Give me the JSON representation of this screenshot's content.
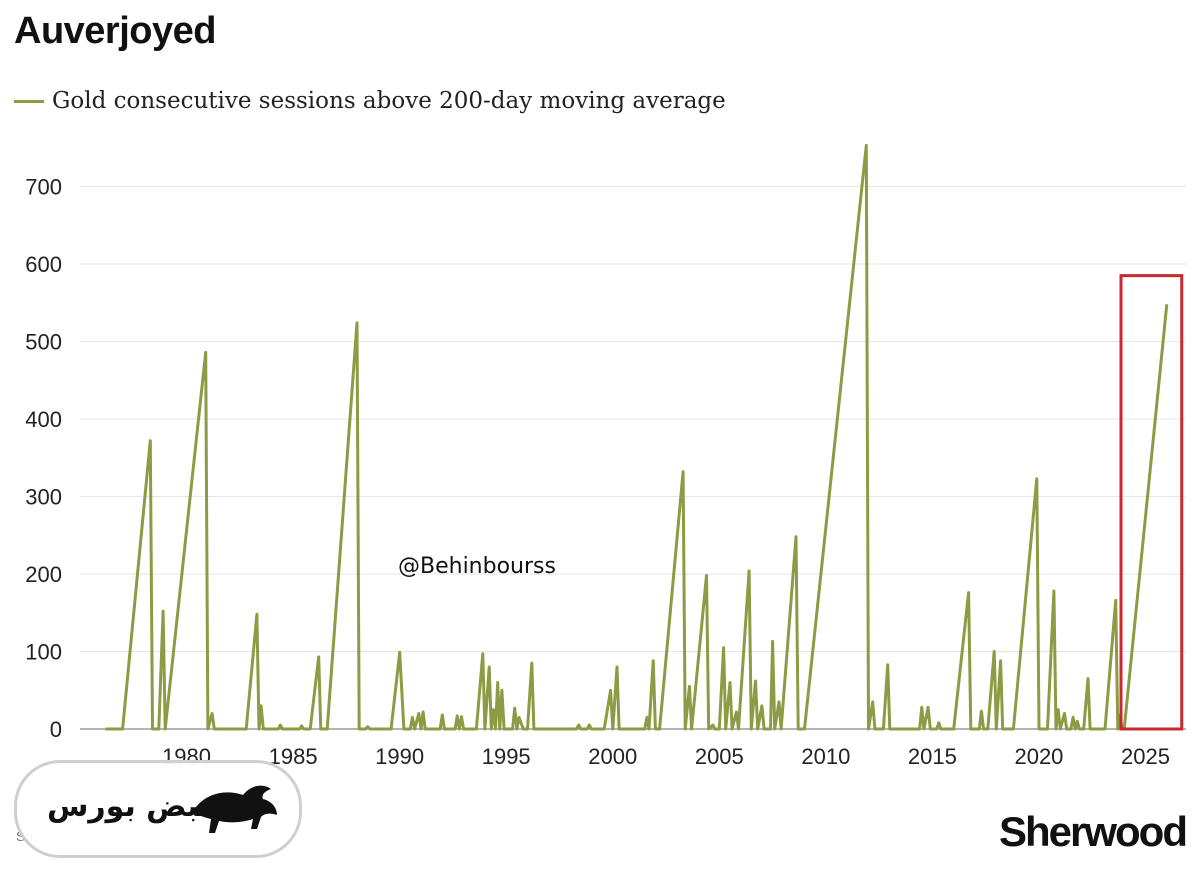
{
  "header": {
    "title": "Auverjoyed",
    "legend_label": "Gold consecutive sessions above 200-day moving average"
  },
  "watermark": "@Behinbourss",
  "brand": "Sherwood",
  "source_visible": "So",
  "logo": {
    "text": "نبض بورس"
  },
  "colors": {
    "line": "#8d9b45",
    "highlight_box": "#c8282e",
    "grid": "#e6e6e6"
  },
  "chart_data": {
    "type": "line",
    "series": [
      {
        "name": "Gold consecutive sessions above 200-day moving average",
        "points": [
          [
            1976.2,
            0
          ],
          [
            1977.0,
            0
          ],
          [
            1978.3,
            372
          ],
          [
            1978.4,
            0
          ],
          [
            1978.7,
            0
          ],
          [
            1978.9,
            152
          ],
          [
            1979.0,
            0
          ],
          [
            1980.9,
            486
          ],
          [
            1981.0,
            0
          ],
          [
            1981.2,
            20
          ],
          [
            1981.3,
            0
          ],
          [
            1982.8,
            0
          ],
          [
            1983.3,
            148
          ],
          [
            1983.4,
            0
          ],
          [
            1983.5,
            30
          ],
          [
            1983.6,
            0
          ],
          [
            1984.3,
            0
          ],
          [
            1984.4,
            5
          ],
          [
            1984.5,
            0
          ],
          [
            1985.3,
            0
          ],
          [
            1985.4,
            4
          ],
          [
            1985.5,
            0
          ],
          [
            1985.8,
            0
          ],
          [
            1986.2,
            93
          ],
          [
            1986.3,
            0
          ],
          [
            1986.6,
            0
          ],
          [
            1988.0,
            524
          ],
          [
            1988.1,
            0
          ],
          [
            1988.4,
            0
          ],
          [
            1988.5,
            3
          ],
          [
            1988.6,
            0
          ],
          [
            1989.6,
            0
          ],
          [
            1990.0,
            99
          ],
          [
            1990.2,
            0
          ],
          [
            1990.5,
            0
          ],
          [
            1990.6,
            15
          ],
          [
            1990.7,
            0
          ],
          [
            1990.9,
            20
          ],
          [
            1991.0,
            0
          ],
          [
            1991.1,
            22
          ],
          [
            1991.2,
            0
          ],
          [
            1991.9,
            0
          ],
          [
            1992.0,
            18
          ],
          [
            1992.1,
            0
          ],
          [
            1992.6,
            0
          ],
          [
            1992.7,
            17
          ],
          [
            1992.8,
            0
          ],
          [
            1992.9,
            16
          ],
          [
            1993.0,
            0
          ],
          [
            1993.6,
            0
          ],
          [
            1993.9,
            97
          ],
          [
            1994.0,
            0
          ],
          [
            1994.2,
            80
          ],
          [
            1994.3,
            0
          ],
          [
            1994.4,
            25
          ],
          [
            1994.5,
            0
          ],
          [
            1994.6,
            60
          ],
          [
            1994.7,
            0
          ],
          [
            1994.8,
            50
          ],
          [
            1994.9,
            0
          ],
          [
            1995.3,
            0
          ],
          [
            1995.4,
            27
          ],
          [
            1995.5,
            0
          ],
          [
            1995.6,
            15
          ],
          [
            1995.8,
            0
          ],
          [
            1996.0,
            0
          ],
          [
            1996.2,
            85
          ],
          [
            1996.3,
            0
          ],
          [
            1998.3,
            0
          ],
          [
            1998.4,
            5
          ],
          [
            1998.5,
            0
          ],
          [
            1998.8,
            0
          ],
          [
            1998.9,
            5
          ],
          [
            1999.0,
            0
          ],
          [
            1999.6,
            0
          ],
          [
            1999.9,
            50
          ],
          [
            2000.0,
            0
          ],
          [
            2000.2,
            80
          ],
          [
            2000.3,
            0
          ],
          [
            2001.5,
            0
          ],
          [
            2001.6,
            15
          ],
          [
            2001.7,
            0
          ],
          [
            2001.9,
            88
          ],
          [
            2002.0,
            0
          ],
          [
            2002.2,
            0
          ],
          [
            2003.3,
            332
          ],
          [
            2003.4,
            0
          ],
          [
            2003.6,
            55
          ],
          [
            2003.7,
            0
          ],
          [
            2004.4,
            198
          ],
          [
            2004.5,
            0
          ],
          [
            2004.7,
            5
          ],
          [
            2004.8,
            0
          ],
          [
            2005.0,
            0
          ],
          [
            2005.2,
            105
          ],
          [
            2005.3,
            0
          ],
          [
            2005.5,
            60
          ],
          [
            2005.6,
            0
          ],
          [
            2005.8,
            22
          ],
          [
            2005.9,
            0
          ],
          [
            2006.4,
            204
          ],
          [
            2006.5,
            0
          ],
          [
            2006.7,
            62
          ],
          [
            2006.8,
            0
          ],
          [
            2007.0,
            30
          ],
          [
            2007.1,
            0
          ],
          [
            2007.4,
            0
          ],
          [
            2007.5,
            113
          ],
          [
            2007.6,
            0
          ],
          [
            2007.8,
            35
          ],
          [
            2007.9,
            0
          ],
          [
            2008.6,
            248
          ],
          [
            2008.7,
            0
          ],
          [
            2009.0,
            0
          ],
          [
            2011.9,
            753
          ],
          [
            2012.0,
            0
          ],
          [
            2012.2,
            35
          ],
          [
            2012.3,
            0
          ],
          [
            2012.7,
            0
          ],
          [
            2012.9,
            83
          ],
          [
            2013.0,
            0
          ],
          [
            2014.4,
            0
          ],
          [
            2014.5,
            28
          ],
          [
            2014.6,
            0
          ],
          [
            2014.8,
            28
          ],
          [
            2014.9,
            0
          ],
          [
            2015.2,
            0
          ],
          [
            2015.3,
            8
          ],
          [
            2015.4,
            0
          ],
          [
            2016.0,
            0
          ],
          [
            2016.7,
            176
          ],
          [
            2016.8,
            0
          ],
          [
            2017.2,
            0
          ],
          [
            2017.3,
            23
          ],
          [
            2017.4,
            0
          ],
          [
            2017.6,
            0
          ],
          [
            2017.9,
            100
          ],
          [
            2018.0,
            0
          ],
          [
            2018.2,
            88
          ],
          [
            2018.3,
            0
          ],
          [
            2018.8,
            0
          ],
          [
            2019.9,
            323
          ],
          [
            2020.0,
            0
          ],
          [
            2020.4,
            0
          ],
          [
            2020.7,
            178
          ],
          [
            2020.8,
            0
          ],
          [
            2020.9,
            25
          ],
          [
            2021.0,
            0
          ],
          [
            2021.2,
            20
          ],
          [
            2021.3,
            0
          ],
          [
            2021.5,
            0
          ],
          [
            2021.6,
            15
          ],
          [
            2021.7,
            0
          ],
          [
            2021.8,
            10
          ],
          [
            2021.9,
            0
          ],
          [
            2022.1,
            0
          ],
          [
            2022.3,
            65
          ],
          [
            2022.4,
            0
          ],
          [
            2022.6,
            0
          ],
          [
            2023.1,
            0
          ],
          [
            2023.6,
            166
          ],
          [
            2023.7,
            0
          ],
          [
            2023.8,
            18
          ],
          [
            2023.9,
            0
          ],
          [
            2024.0,
            0
          ],
          [
            2026.0,
            548
          ]
        ]
      }
    ],
    "xlim": [
      1975.0,
      2026.9
    ],
    "ylim": [
      0,
      760
    ],
    "yticks": [
      0,
      100,
      200,
      300,
      400,
      500,
      600,
      700
    ],
    "xticks": [
      1980,
      1985,
      1990,
      1995,
      2000,
      2005,
      2010,
      2015,
      2020,
      2025
    ],
    "grid": "horizontal",
    "legend_position": "top-left",
    "highlight_range": {
      "x": [
        2023.85,
        2026.7
      ],
      "y": [
        0,
        585
      ]
    }
  }
}
